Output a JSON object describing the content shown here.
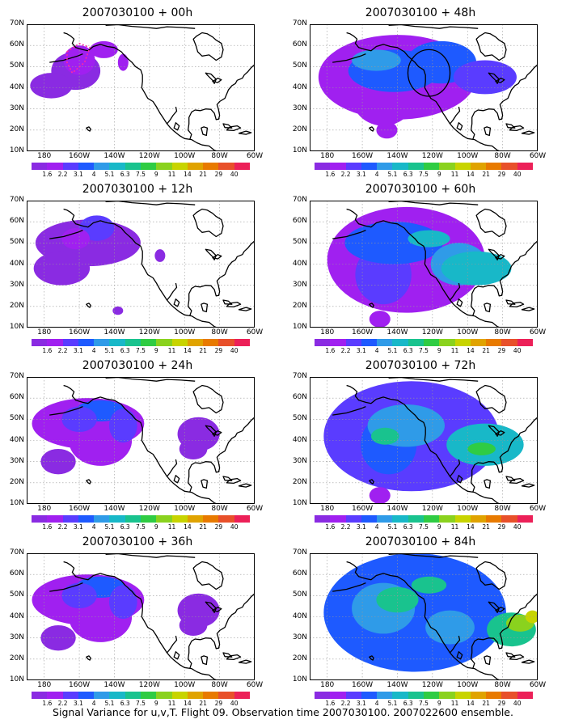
{
  "panels": [
    {
      "title": "2007030100 + 00h",
      "level": 0
    },
    {
      "title": "2007030100 + 48h",
      "level": 3
    },
    {
      "title": "2007030100 + 12h",
      "level": 1
    },
    {
      "title": "2007030100 + 60h",
      "level": 4
    },
    {
      "title": "2007030100 + 24h",
      "level": 2
    },
    {
      "title": "2007030100 + 72h",
      "level": 5
    },
    {
      "title": "2007030100 + 36h",
      "level": 2
    },
    {
      "title": "2007030100 + 84h",
      "level": 6
    }
  ],
  "y_labels": [
    "70N",
    "60N",
    "50N",
    "40N",
    "30N",
    "20N",
    "10N"
  ],
  "x_labels": [
    "180",
    "160W",
    "140W",
    "120W",
    "100W",
    "80W",
    "60W"
  ],
  "colorbar": {
    "labels": [
      "1.6",
      "2.2",
      "3.1",
      "4",
      "5.1",
      "6.3",
      "7.5",
      "9",
      "11",
      "14",
      "21",
      "29",
      "40"
    ],
    "colors": [
      "#8a2be2",
      "#a020f0",
      "#5a3cff",
      "#1e5aff",
      "#2f9be8",
      "#18b8c8",
      "#19c38e",
      "#2fcc43",
      "#8ad21e",
      "#c8d400",
      "#e0a300",
      "#e87a00",
      "#e8502a",
      "#ec2058"
    ]
  },
  "caption": "Signal Variance for u,v,T. Flight 09. Observation time 2007030100. 2007022600 ensemble."
}
